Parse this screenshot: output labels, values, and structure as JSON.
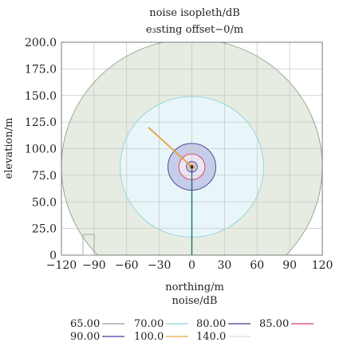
{
  "chart_data": {
    "type": "contour",
    "title": "noise isopleth/dB",
    "subtitle": "e₃sting offset−0/m",
    "xlabel": "northing/m",
    "ylabel": "elevation/m",
    "xlim": [
      -120,
      120
    ],
    "ylim": [
      0,
      200
    ],
    "x_ticks": [
      "−120",
      "−90",
      "−60",
      "−30",
      "0",
      "30",
      "60",
      "90",
      "120"
    ],
    "x_tick_values": [
      -120,
      -90,
      -60,
      -30,
      0,
      30,
      60,
      90,
      120
    ],
    "y_ticks": [
      "0",
      "25.0",
      "50.0",
      "75.0",
      "100.0",
      "125.0",
      "150.0",
      "175.0",
      "200.0"
    ],
    "y_tick_values": [
      0,
      25,
      50,
      75,
      100,
      125,
      150,
      175,
      200
    ],
    "grid": true,
    "source": {
      "x": 0,
      "y": 83
    },
    "legend_title": "noise/dB",
    "legend_position": "bottom",
    "series": [
      {
        "name": "65.00",
        "value": 65,
        "radius_m": 120,
        "color": "#8aa58a",
        "fill": "#e6ece1"
      },
      {
        "name": "70.00",
        "value": 70,
        "radius_m": 66,
        "color": "#8fd3d8",
        "fill": "#e8f6fa"
      },
      {
        "name": "80.00",
        "value": 80,
        "radius_m": 22,
        "color": "#3d3d8a",
        "fill": "#c6cce9"
      },
      {
        "name": "85.00",
        "value": 85,
        "radius_m": 12,
        "color": "#d83a5a",
        "fill": "#e9e6f4"
      },
      {
        "name": "90.00",
        "value": 90,
        "radius_m": 5,
        "color": "#3a3aa0",
        "fill": "#d8c8e6"
      },
      {
        "name": "100.0",
        "value": 100,
        "radius_m": 2.5,
        "color": "#e7a33a",
        "fill": "#f2dfa8"
      },
      {
        "name": "140.0",
        "value": 140,
        "radius_m": 1,
        "color": "#dddddd",
        "fill": "#f0f0f0"
      }
    ],
    "annotations": {
      "ray_orange": {
        "from": [
          0,
          83
        ],
        "to": [
          -40,
          120
        ],
        "color": "#e7a33a"
      },
      "mast_teal": {
        "from": [
          0,
          83
        ],
        "to": [
          0,
          0
        ],
        "color": "#1f6f6f"
      }
    }
  }
}
